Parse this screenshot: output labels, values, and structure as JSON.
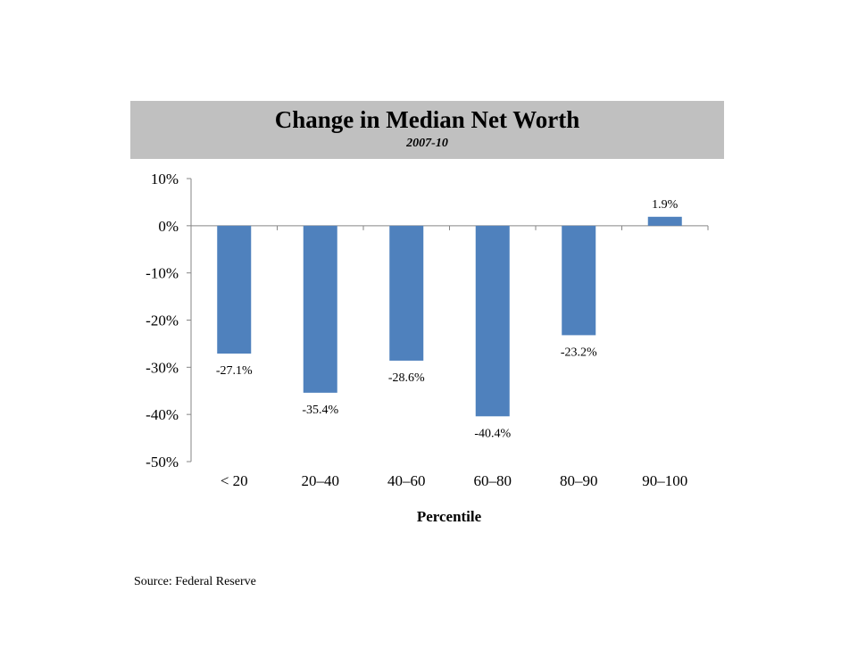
{
  "chart_data": {
    "type": "bar",
    "title": "Change in Median Net Worth",
    "subtitle": "2007-10",
    "xlabel": "Percentile",
    "ylabel": "",
    "categories": [
      "< 20",
      "20–40",
      "40–60",
      "60–80",
      "80–90",
      "90–100"
    ],
    "values": [
      -27.1,
      -35.4,
      -28.6,
      -40.4,
      -23.2,
      1.9
    ],
    "data_labels": [
      "-27.1%",
      "-35.4%",
      "-28.6%",
      "-40.4%",
      "-23.2%",
      "1.9%"
    ],
    "ylim": [
      -50,
      10
    ],
    "yticks": [
      10,
      0,
      -10,
      -20,
      -30,
      -40,
      -50
    ],
    "ytick_labels": [
      "10%",
      "0%",
      "-10%",
      "-20%",
      "-30%",
      "-40%",
      "-50%"
    ],
    "grid": false,
    "legend": "none",
    "bar_color": "#4f81bd",
    "title_band_color": "#c0c0c0"
  },
  "source": "Source: Federal Reserve"
}
